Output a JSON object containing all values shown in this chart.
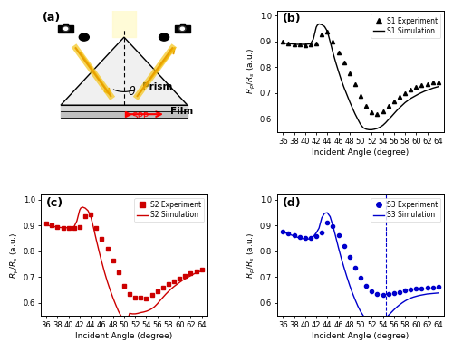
{
  "b_sim_x": [
    36,
    36.5,
    37,
    37.5,
    38,
    38.5,
    39,
    39.5,
    40,
    40.5,
    41,
    41.5,
    42,
    42.2,
    42.5,
    43,
    43.5,
    44,
    44.5,
    45,
    45.5,
    46,
    46.5,
    47,
    47.5,
    48,
    48.5,
    49,
    49.5,
    50,
    50.5,
    51,
    51.5,
    52,
    52.5,
    53,
    53.5,
    54,
    54.5,
    55,
    55.5,
    56,
    56.5,
    57,
    57.5,
    58,
    58.5,
    59,
    59.5,
    60,
    60.5,
    61,
    61.5,
    62,
    62.5,
    63,
    63.5,
    64
  ],
  "b_sim_y": [
    0.895,
    0.893,
    0.892,
    0.891,
    0.89,
    0.889,
    0.889,
    0.889,
    0.889,
    0.89,
    0.892,
    0.91,
    0.955,
    0.963,
    0.968,
    0.965,
    0.958,
    0.94,
    0.9,
    0.858,
    0.82,
    0.785,
    0.752,
    0.722,
    0.695,
    0.668,
    0.643,
    0.619,
    0.598,
    0.578,
    0.565,
    0.56,
    0.558,
    0.558,
    0.56,
    0.563,
    0.568,
    0.575,
    0.585,
    0.597,
    0.608,
    0.62,
    0.632,
    0.643,
    0.653,
    0.663,
    0.671,
    0.679,
    0.685,
    0.691,
    0.697,
    0.702,
    0.707,
    0.711,
    0.715,
    0.719,
    0.722,
    0.725
  ],
  "b_exp_x": [
    36,
    37,
    38,
    39,
    40,
    41,
    42,
    43,
    44,
    45,
    46,
    47,
    48,
    49,
    50,
    51,
    52,
    53,
    54,
    55,
    56,
    57,
    58,
    59,
    60,
    61,
    62,
    63,
    64
  ],
  "b_exp_y": [
    0.9,
    0.893,
    0.89,
    0.888,
    0.887,
    0.888,
    0.892,
    0.928,
    0.937,
    0.9,
    0.858,
    0.818,
    0.775,
    0.735,
    0.688,
    0.65,
    0.625,
    0.62,
    0.63,
    0.65,
    0.668,
    0.685,
    0.7,
    0.714,
    0.724,
    0.73,
    0.736,
    0.74,
    0.743
  ],
  "c_sim_x": [
    36,
    36.5,
    37,
    37.5,
    38,
    38.5,
    39,
    39.5,
    40,
    40.5,
    41,
    41.5,
    42,
    42.2,
    42.5,
    43,
    43.5,
    44,
    44.5,
    45,
    45.5,
    46,
    46.5,
    47,
    47.5,
    48,
    48.5,
    49,
    49.5,
    50,
    50.5,
    51,
    51.5,
    52,
    52.5,
    53,
    53.5,
    54,
    54.5,
    55,
    55.5,
    56,
    56.5,
    57,
    57.5,
    58,
    58.5,
    59,
    59.5,
    60,
    60.5,
    61,
    61.5,
    62,
    62.5,
    63,
    63.5,
    64
  ],
  "c_sim_y": [
    0.902,
    0.9,
    0.898,
    0.896,
    0.894,
    0.893,
    0.892,
    0.892,
    0.892,
    0.893,
    0.896,
    0.918,
    0.96,
    0.968,
    0.972,
    0.968,
    0.958,
    0.936,
    0.892,
    0.845,
    0.8,
    0.758,
    0.718,
    0.682,
    0.65,
    0.62,
    0.593,
    0.568,
    0.548,
    0.532,
    0.522,
    0.56,
    0.558,
    0.558,
    0.56,
    0.563,
    0.565,
    0.568,
    0.572,
    0.578,
    0.586,
    0.597,
    0.61,
    0.622,
    0.634,
    0.645,
    0.655,
    0.664,
    0.672,
    0.68,
    0.688,
    0.694,
    0.7,
    0.706,
    0.712,
    0.717,
    0.721,
    0.725
  ],
  "c_exp_x": [
    36,
    37,
    38,
    39,
    40,
    41,
    42,
    43,
    44,
    45,
    46,
    47,
    48,
    49,
    50,
    51,
    52,
    53,
    54,
    55,
    56,
    57,
    58,
    59,
    60,
    61,
    62,
    63,
    64
  ],
  "c_exp_y": [
    0.908,
    0.9,
    0.896,
    0.892,
    0.89,
    0.89,
    0.894,
    0.935,
    0.942,
    0.89,
    0.85,
    0.81,
    0.765,
    0.718,
    0.668,
    0.635,
    0.62,
    0.622,
    0.618,
    0.632,
    0.646,
    0.66,
    0.672,
    0.684,
    0.694,
    0.704,
    0.715,
    0.722,
    0.73
  ],
  "d_sim_x": [
    36,
    36.5,
    37,
    37.5,
    38,
    38.5,
    39,
    39.5,
    40,
    40.5,
    41,
    41.5,
    42,
    42.5,
    43,
    43.5,
    44,
    44.5,
    45,
    45.5,
    46,
    46.5,
    47,
    47.5,
    48,
    48.5,
    49,
    49.5,
    50,
    50.5,
    51,
    51.5,
    52,
    52.5,
    53,
    53.5,
    54,
    54.5,
    55,
    55.5,
    56,
    56.5,
    57,
    57.5,
    58,
    58.5,
    59,
    59.5,
    60,
    60.5,
    61,
    61.5,
    62,
    62.5,
    63,
    63.5,
    64
  ],
  "d_sim_y": [
    0.875,
    0.872,
    0.868,
    0.864,
    0.86,
    0.856,
    0.852,
    0.85,
    0.848,
    0.848,
    0.85,
    0.858,
    0.872,
    0.89,
    0.93,
    0.948,
    0.95,
    0.935,
    0.9,
    0.858,
    0.815,
    0.775,
    0.738,
    0.703,
    0.67,
    0.64,
    0.613,
    0.588,
    0.567,
    0.55,
    0.538,
    0.53,
    0.525,
    0.523,
    0.523,
    0.527,
    0.533,
    0.541,
    0.552,
    0.563,
    0.574,
    0.584,
    0.593,
    0.601,
    0.608,
    0.614,
    0.619,
    0.623,
    0.626,
    0.629,
    0.631,
    0.633,
    0.635,
    0.636,
    0.637,
    0.638,
    0.639
  ],
  "d_exp_x": [
    36,
    37,
    38,
    39,
    40,
    41,
    42,
    43,
    44,
    45,
    46,
    47,
    48,
    49,
    50,
    51,
    52,
    53,
    54,
    55,
    56,
    57,
    58,
    59,
    60,
    61,
    62,
    63,
    64
  ],
  "d_exp_y": [
    0.877,
    0.87,
    0.862,
    0.856,
    0.851,
    0.852,
    0.858,
    0.875,
    0.912,
    0.898,
    0.862,
    0.82,
    0.778,
    0.735,
    0.698,
    0.668,
    0.645,
    0.636,
    0.632,
    0.635,
    0.638,
    0.642,
    0.648,
    0.652,
    0.655,
    0.657,
    0.658,
    0.66,
    0.662
  ],
  "color_b": "#000000",
  "color_c": "#cc0000",
  "color_d": "#0000cc",
  "xlim": [
    35,
    65
  ],
  "ylim": [
    0.55,
    1.02
  ],
  "xticks": [
    36,
    38,
    40,
    42,
    44,
    46,
    48,
    50,
    52,
    54,
    56,
    58,
    60,
    62,
    64
  ],
  "yticks": [
    0.6,
    0.7,
    0.8,
    0.9,
    1.0
  ],
  "xlabel": "Incident Angle (degree)",
  "ylabel": "$R_p/R_s$ (a.u.)"
}
